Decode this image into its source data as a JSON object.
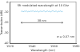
{
  "chart_data": {
    "type": "line",
    "annotations": [
      "SR modulated wavelength at 10 Ghz",
      "38 nm",
      "σ = 0.07 nm"
    ],
    "x_label": "Wavelength (nm)",
    "y_label": "Transmission (dB)",
    "x": [
      1530,
      1531,
      1532,
      1533,
      1534,
      1535,
      1536,
      1537,
      1538,
      1539,
      1540,
      1541,
      1542,
      1543,
      1544,
      1545,
      1546,
      1547,
      1548,
      1549,
      1550,
      1551,
      1552,
      1553,
      1554,
      1555,
      1556,
      1557,
      1558,
      1559,
      1560,
      1561,
      1562,
      1563,
      1564,
      1565,
      1566,
      1567,
      1568
    ],
    "series": [
      {
        "name": "SR",
        "color": "#8ecbe8",
        "values": [
          -9.2,
          -8.6,
          -9.5,
          -8.8,
          -9.1,
          -8.4,
          -9.6,
          -8.9,
          -9.3,
          -8.7,
          -9.0,
          -8.5,
          -9.4,
          -8.8,
          -9.2,
          -8.6,
          -9.7,
          -9.0,
          -8.7,
          -9.3,
          -8.9,
          -8.5,
          -9.4,
          -9.1,
          -8.6,
          -9.2,
          -8.8,
          -9.5,
          -8.9,
          -8.4,
          -9.3,
          -9.0,
          -8.7,
          -9.6,
          -8.8,
          -9.1,
          -8.6,
          -9.4,
          -9.0
        ]
      }
    ],
    "xlim": [
      1520,
      1580
    ],
    "xticks": [
      1520,
      1540,
      1560,
      1580
    ],
    "ylim": [
      -40,
      0
    ],
    "yticks": [
      -40,
      -30,
      -20,
      -10,
      0
    ],
    "grid": false
  }
}
